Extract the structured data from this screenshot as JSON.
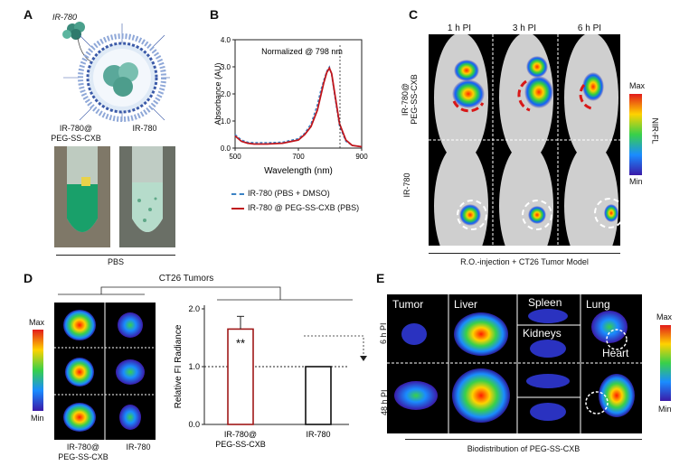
{
  "panels": {
    "A": {
      "label": "A",
      "drug_label": "IR-780",
      "tube1_label": "IR-780@\nPEG-SS-CXB",
      "tube2_label": "IR-780",
      "solvent": "PBS"
    },
    "B": {
      "label": "B",
      "annotation": "Normalized @ 798 nm",
      "legend": [
        "IR-780 (PBS + DMSO)",
        "IR-780 @ PEG-SS-CXB (PBS)"
      ]
    },
    "C": {
      "label": "C",
      "timepoints": [
        "1 h PI",
        "3 h PI",
        "6 h PI"
      ],
      "row_labels": [
        "IR-780@\nPEG-SS-CXB",
        "IR-780"
      ],
      "colorbar": {
        "max": "Max",
        "min": "Min",
        "title": "NIR-FL"
      },
      "caption": "R.O.-injection + CT26 Tumor Model"
    },
    "D": {
      "label": "D",
      "group_title": "CT26 Tumors",
      "columns": [
        "IR-780@\nPEG-SS-CXB",
        "IR-780"
      ],
      "colorbar": {
        "max": "Max",
        "min": "Min"
      },
      "significance": "**"
    },
    "E": {
      "label": "E",
      "organs": [
        "Tumor",
        "Liver",
        "Spleen",
        "Kidneys",
        "Lung",
        "Heart"
      ],
      "timepoints": [
        "6 h PI",
        "48 h PI"
      ],
      "colorbar": {
        "max": "Max",
        "min": "Min"
      },
      "caption": "Biodistribution of PEG-SS-CXB"
    }
  },
  "chart_data": [
    {
      "type": "line",
      "panel": "B",
      "xlabel": "Wavelength (nm)",
      "ylabel": "Absorbance (AU)",
      "xlim": [
        500,
        900
      ],
      "ylim": [
        0.0,
        4.0
      ],
      "xticks": [
        500,
        700,
        900
      ],
      "yticks": [
        "0.0",
        "1.0",
        "2.0",
        "3.0",
        "4.0"
      ],
      "series": [
        {
          "name": "IR-780 (PBS + DMSO)",
          "color": "#3b82c4",
          "x": [
            500,
            520,
            540,
            560,
            600,
            650,
            700,
            720,
            740,
            760,
            770,
            780,
            790,
            798,
            805,
            815,
            830,
            850,
            870,
            900
          ],
          "y": [
            0.5,
            0.3,
            0.22,
            0.2,
            0.2,
            0.22,
            0.35,
            0.55,
            0.9,
            1.6,
            2.1,
            2.5,
            2.85,
            3.0,
            2.7,
            1.9,
            0.8,
            0.25,
            0.1,
            0.05
          ]
        },
        {
          "name": "IR-780 @ PEG-SS-CXB (PBS)",
          "color": "#c0161c",
          "x": [
            500,
            520,
            540,
            560,
            600,
            650,
            700,
            720,
            740,
            760,
            770,
            780,
            790,
            798,
            805,
            815,
            830,
            850,
            870,
            900
          ],
          "y": [
            0.45,
            0.25,
            0.18,
            0.15,
            0.15,
            0.18,
            0.3,
            0.5,
            0.8,
            1.4,
            1.9,
            2.4,
            2.8,
            2.95,
            2.75,
            2.0,
            0.9,
            0.3,
            0.1,
            0.05
          ]
        }
      ]
    },
    {
      "type": "bar",
      "panel": "D",
      "categories": [
        "IR-780@\nPEG-SS-CXB",
        "IR-780"
      ],
      "values": [
        1.65,
        1.0
      ],
      "errors": [
        0.22,
        0
      ],
      "ylabel": "Relative FI Radiance",
      "ylim": [
        0.0,
        2.0
      ],
      "yticks": [
        "0.0",
        "1.0",
        "2.0"
      ],
      "reference_line": 1.0
    }
  ]
}
